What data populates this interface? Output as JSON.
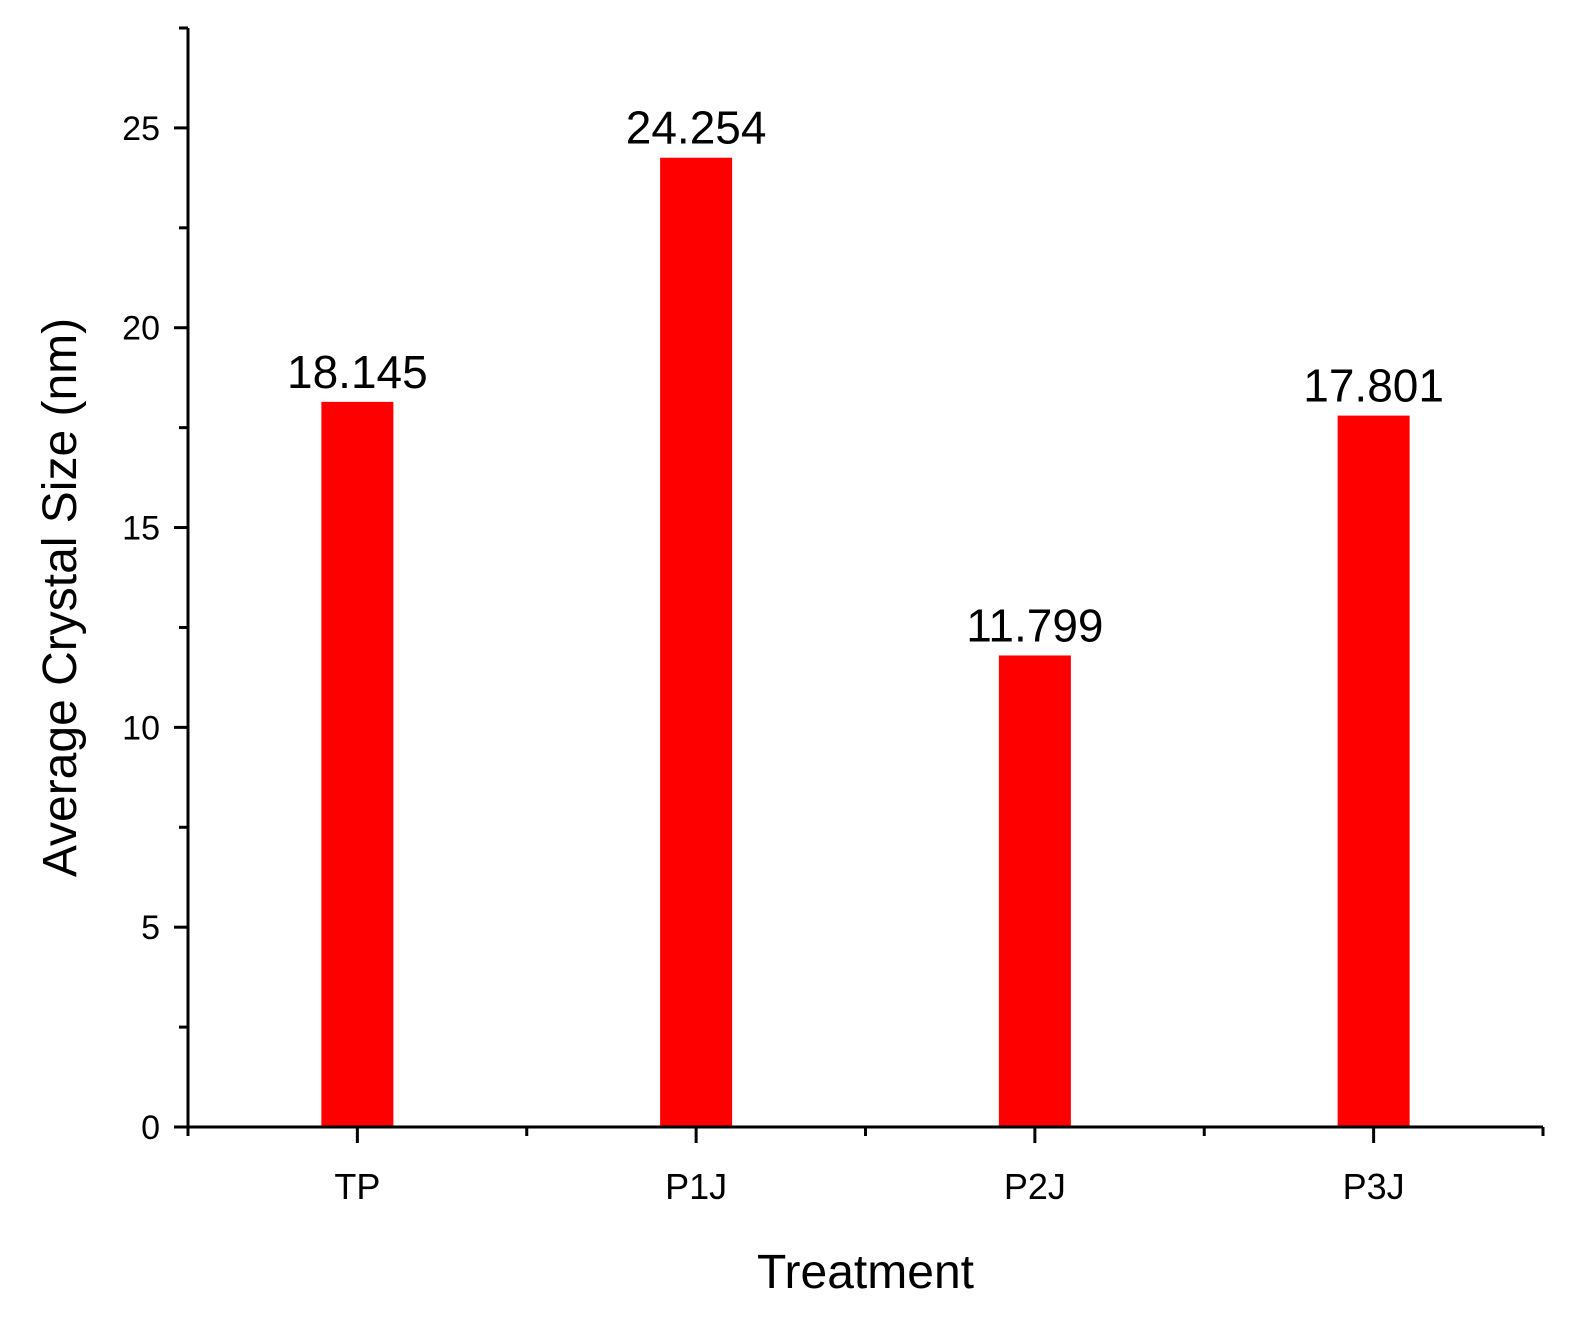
{
  "chart_data": {
    "type": "bar",
    "categories": [
      "TP",
      "P1J",
      "P2J",
      "P3J"
    ],
    "values": [
      18.145,
      24.254,
      11.799,
      17.801
    ],
    "data_labels": [
      "18.145",
      "24.254",
      "11.799",
      "17.801"
    ],
    "xlabel": "Treatment",
    "ylabel": "Average Crystal Size (nm)",
    "ylim": [
      0,
      27.5
    ],
    "yticks": [
      0,
      5,
      10,
      15,
      20,
      25
    ],
    "ytick_labels": [
      "0",
      "5",
      "10",
      "15",
      "20",
      "25"
    ],
    "grid": false,
    "legend": "none",
    "bar_color": "#ff0000",
    "axis_color": "#000000"
  }
}
